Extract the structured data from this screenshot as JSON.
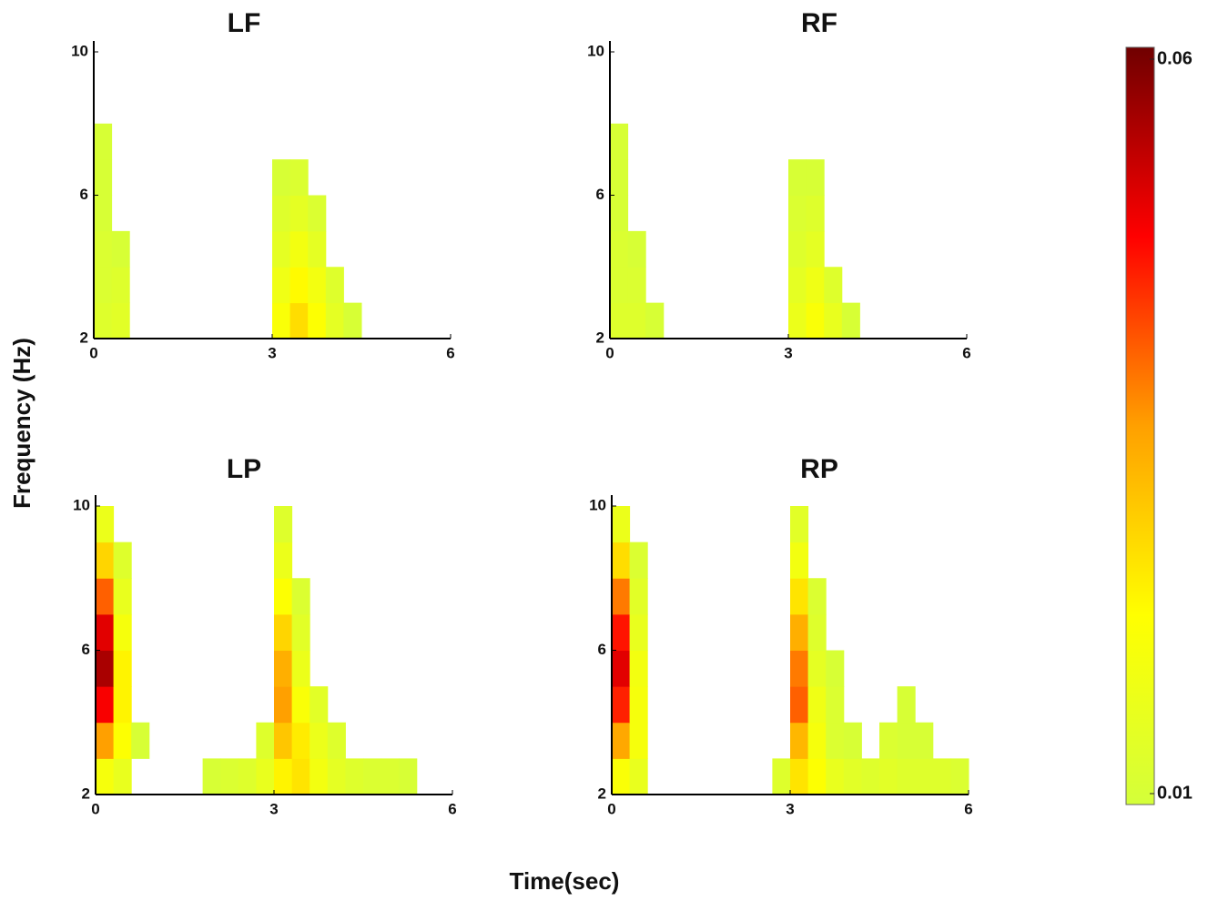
{
  "figure": {
    "xlabel": "Time(sec)",
    "ylabel": "Frequency (Hz)",
    "colorbar": {
      "clim": [
        0.01,
        0.06
      ],
      "ticks": [
        0.01,
        0.06
      ],
      "colors": [
        "#d4ff3a",
        "#ffff00",
        "#ffa000",
        "#ff0000",
        "#700000"
      ]
    }
  },
  "chart_data": [
    {
      "type": "heatmap",
      "title": "LF",
      "xlim": [
        0,
        6
      ],
      "xticks": [
        0,
        3,
        6
      ],
      "ylim": [
        2,
        10
      ],
      "yticks": [
        2,
        6,
        10
      ],
      "x": [
        0.15,
        0.45,
        0.75,
        1.05,
        1.35,
        1.65,
        1.95,
        2.25,
        2.55,
        2.85,
        3.15,
        3.45,
        3.75,
        4.05,
        4.35,
        4.65,
        4.95,
        5.25,
        5.55,
        5.85
      ],
      "y": [
        2.5,
        3.5,
        4.5,
        5.5,
        6.5,
        7.5,
        8.5,
        9.5
      ],
      "values": [
        [
          0.013,
          0.014,
          null,
          null,
          null,
          null,
          null,
          null,
          null,
          null,
          0.021,
          0.027,
          0.022,
          0.015,
          0.011,
          null,
          null,
          null,
          null,
          null
        ],
        [
          0.012,
          0.013,
          null,
          null,
          null,
          null,
          null,
          null,
          null,
          null,
          0.018,
          0.023,
          0.019,
          0.013,
          null,
          null,
          null,
          null,
          null,
          null
        ],
        [
          0.012,
          0.011,
          null,
          null,
          null,
          null,
          null,
          null,
          null,
          null,
          0.015,
          0.019,
          0.015,
          null,
          null,
          null,
          null,
          null,
          null,
          null
        ],
        [
          0.011,
          null,
          null,
          null,
          null,
          null,
          null,
          null,
          null,
          null,
          0.013,
          0.015,
          0.012,
          null,
          null,
          null,
          null,
          null,
          null,
          null
        ],
        [
          0.011,
          null,
          null,
          null,
          null,
          null,
          null,
          null,
          null,
          null,
          0.011,
          0.012,
          null,
          null,
          null,
          null,
          null,
          null,
          null,
          null
        ],
        [
          0.011,
          null,
          null,
          null,
          null,
          null,
          null,
          null,
          null,
          null,
          null,
          null,
          null,
          null,
          null,
          null,
          null,
          null,
          null,
          null
        ],
        [
          null,
          null,
          null,
          null,
          null,
          null,
          null,
          null,
          null,
          null,
          null,
          null,
          null,
          null,
          null,
          null,
          null,
          null,
          null,
          null
        ],
        [
          null,
          null,
          null,
          null,
          null,
          null,
          null,
          null,
          null,
          null,
          null,
          null,
          null,
          null,
          null,
          null,
          null,
          null,
          null,
          null
        ]
      ]
    },
    {
      "type": "heatmap",
      "title": "RF",
      "xlim": [
        0,
        6
      ],
      "xticks": [
        0,
        3,
        6
      ],
      "ylim": [
        2,
        10
      ],
      "yticks": [
        2,
        6,
        10
      ],
      "x": [
        0.15,
        0.45,
        0.75,
        1.05,
        1.35,
        1.65,
        1.95,
        2.25,
        2.55,
        2.85,
        3.15,
        3.45,
        3.75,
        4.05,
        4.35,
        4.65,
        4.95,
        5.25,
        5.55,
        5.85
      ],
      "y": [
        2.5,
        3.5,
        4.5,
        5.5,
        6.5,
        7.5,
        8.5,
        9.5
      ],
      "values": [
        [
          0.013,
          0.013,
          0.011,
          null,
          null,
          null,
          null,
          null,
          null,
          null,
          0.017,
          0.021,
          0.016,
          0.011,
          null,
          null,
          null,
          null,
          null,
          null
        ],
        [
          0.012,
          0.012,
          null,
          null,
          null,
          null,
          null,
          null,
          null,
          null,
          0.015,
          0.018,
          0.013,
          null,
          null,
          null,
          null,
          null,
          null,
          null
        ],
        [
          0.012,
          0.011,
          null,
          null,
          null,
          null,
          null,
          null,
          null,
          null,
          0.013,
          0.015,
          null,
          null,
          null,
          null,
          null,
          null,
          null,
          null
        ],
        [
          0.011,
          null,
          null,
          null,
          null,
          null,
          null,
          null,
          null,
          null,
          0.012,
          0.013,
          null,
          null,
          null,
          null,
          null,
          null,
          null,
          null
        ],
        [
          0.011,
          null,
          null,
          null,
          null,
          null,
          null,
          null,
          null,
          null,
          0.011,
          0.011,
          null,
          null,
          null,
          null,
          null,
          null,
          null,
          null
        ],
        [
          0.011,
          null,
          null,
          null,
          null,
          null,
          null,
          null,
          null,
          null,
          null,
          null,
          null,
          null,
          null,
          null,
          null,
          null,
          null,
          null
        ],
        [
          null,
          null,
          null,
          null,
          null,
          null,
          null,
          null,
          null,
          null,
          null,
          null,
          null,
          null,
          null,
          null,
          null,
          null,
          null,
          null
        ],
        [
          null,
          null,
          null,
          null,
          null,
          null,
          null,
          null,
          null,
          null,
          null,
          null,
          null,
          null,
          null,
          null,
          null,
          null,
          null,
          null
        ]
      ]
    },
    {
      "type": "heatmap",
      "title": "LP",
      "xlim": [
        0,
        6
      ],
      "xticks": [
        0,
        3,
        6
      ],
      "ylim": [
        2,
        10
      ],
      "yticks": [
        2,
        6,
        10
      ],
      "x": [
        0.15,
        0.45,
        0.75,
        1.05,
        1.35,
        1.65,
        1.95,
        2.25,
        2.55,
        2.85,
        3.15,
        3.45,
        3.75,
        4.05,
        4.35,
        4.65,
        4.95,
        5.25,
        5.55,
        5.85
      ],
      "y": [
        2.5,
        3.5,
        4.5,
        5.5,
        6.5,
        7.5,
        8.5,
        9.5
      ],
      "values": [
        [
          0.02,
          0.016,
          null,
          null,
          null,
          null,
          0.011,
          0.012,
          0.013,
          0.016,
          0.024,
          0.026,
          0.019,
          0.015,
          0.013,
          0.012,
          0.012,
          0.011,
          null,
          null
        ],
        [
          0.035,
          0.022,
          0.011,
          null,
          null,
          null,
          null,
          null,
          null,
          0.013,
          0.03,
          0.025,
          0.017,
          0.013,
          null,
          null,
          null,
          null,
          null,
          null
        ],
        [
          0.048,
          0.024,
          null,
          null,
          null,
          null,
          null,
          null,
          null,
          null,
          0.035,
          0.021,
          0.014,
          null,
          null,
          null,
          null,
          null,
          null,
          null
        ],
        [
          0.055,
          0.024,
          null,
          null,
          null,
          null,
          null,
          null,
          null,
          null,
          0.033,
          0.017,
          null,
          null,
          null,
          null,
          null,
          null,
          null,
          null
        ],
        [
          0.05,
          0.02,
          null,
          null,
          null,
          null,
          null,
          null,
          null,
          null,
          0.028,
          0.014,
          null,
          null,
          null,
          null,
          null,
          null,
          null,
          null
        ],
        [
          0.04,
          0.016,
          null,
          null,
          null,
          null,
          null,
          null,
          null,
          null,
          0.022,
          0.012,
          null,
          null,
          null,
          null,
          null,
          null,
          null,
          null
        ],
        [
          0.028,
          0.013,
          null,
          null,
          null,
          null,
          null,
          null,
          null,
          null,
          0.017,
          null,
          null,
          null,
          null,
          null,
          null,
          null,
          null,
          null
        ],
        [
          0.017,
          null,
          null,
          null,
          null,
          null,
          null,
          null,
          null,
          null,
          0.013,
          null,
          null,
          null,
          null,
          null,
          null,
          null,
          null,
          null
        ]
      ]
    },
    {
      "type": "heatmap",
      "title": "RP",
      "xlim": [
        0,
        6
      ],
      "xticks": [
        0,
        3,
        6
      ],
      "ylim": [
        2,
        10
      ],
      "yticks": [
        2,
        6,
        10
      ],
      "x": [
        0.15,
        0.45,
        0.75,
        1.05,
        1.35,
        1.65,
        1.95,
        2.25,
        2.55,
        2.85,
        3.15,
        3.45,
        3.75,
        4.05,
        4.35,
        4.65,
        4.95,
        5.25,
        5.55,
        5.85
      ],
      "y": [
        2.5,
        3.5,
        4.5,
        5.5,
        6.5,
        7.5,
        8.5,
        9.5
      ],
      "values": [
        [
          0.021,
          0.016,
          null,
          null,
          null,
          null,
          null,
          null,
          null,
          0.013,
          0.026,
          0.022,
          0.016,
          0.014,
          0.013,
          0.014,
          0.013,
          0.013,
          0.013,
          0.012
        ],
        [
          0.034,
          0.02,
          null,
          null,
          null,
          null,
          null,
          null,
          null,
          null,
          0.032,
          0.02,
          0.012,
          0.011,
          null,
          0.012,
          0.011,
          0.011,
          null,
          null
        ],
        [
          0.045,
          0.02,
          null,
          null,
          null,
          null,
          null,
          null,
          null,
          null,
          0.04,
          0.018,
          0.012,
          null,
          null,
          null,
          0.011,
          null,
          null,
          null
        ],
        [
          0.05,
          0.019,
          null,
          null,
          null,
          null,
          null,
          null,
          null,
          null,
          0.038,
          0.015,
          0.011,
          null,
          null,
          null,
          null,
          null,
          null,
          null
        ],
        [
          0.046,
          0.016,
          null,
          null,
          null,
          null,
          null,
          null,
          null,
          null,
          0.033,
          0.013,
          null,
          null,
          null,
          null,
          null,
          null,
          null,
          null
        ],
        [
          0.038,
          0.014,
          null,
          null,
          null,
          null,
          null,
          null,
          null,
          null,
          0.026,
          0.012,
          null,
          null,
          null,
          null,
          null,
          null,
          null,
          null
        ],
        [
          0.027,
          0.012,
          null,
          null,
          null,
          null,
          null,
          null,
          null,
          null,
          0.019,
          null,
          null,
          null,
          null,
          null,
          null,
          null,
          null,
          null
        ],
        [
          0.017,
          null,
          null,
          null,
          null,
          null,
          null,
          null,
          null,
          null,
          0.014,
          null,
          null,
          null,
          null,
          null,
          null,
          null,
          null,
          null
        ]
      ]
    }
  ]
}
